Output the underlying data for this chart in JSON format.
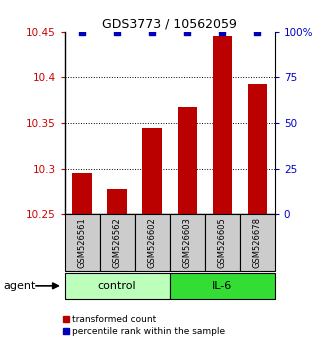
{
  "title": "GDS3773 / 10562059",
  "samples": [
    "GSM526561",
    "GSM526562",
    "GSM526602",
    "GSM526603",
    "GSM526605",
    "GSM526678"
  ],
  "bar_values": [
    10.295,
    10.278,
    10.345,
    10.368,
    10.445,
    10.393
  ],
  "percentile_values": [
    100,
    100,
    100,
    100,
    100,
    100
  ],
  "ylim_left": [
    10.25,
    10.45
  ],
  "ylim_right": [
    0,
    100
  ],
  "yticks_left": [
    10.25,
    10.3,
    10.35,
    10.4,
    10.45
  ],
  "ytick_labels_left": [
    "10.25",
    "10.3",
    "10.35",
    "10.4",
    "10.45"
  ],
  "yticks_right": [
    0,
    25,
    50,
    75,
    100
  ],
  "ytick_labels_right": [
    "0",
    "25",
    "50",
    "75",
    "100%"
  ],
  "hlines": [
    10.3,
    10.35,
    10.4
  ],
  "bar_color": "#bb0000",
  "dot_color": "#0000bb",
  "bar_width": 0.55,
  "groups": [
    {
      "label": "control",
      "indices": [
        0,
        1,
        2
      ],
      "color": "#bbffbb"
    },
    {
      "label": "IL-6",
      "indices": [
        3,
        4,
        5
      ],
      "color": "#33dd33"
    }
  ],
  "agent_label": "agent",
  "legend_bar_label": "transformed count",
  "legend_dot_label": "percentile rank within the sample",
  "bar_label_color": "#cc0000",
  "right_label_color": "#0000cc",
  "background_color": "#ffffff",
  "plot_bg_color": "#ffffff",
  "sample_box_color": "#cccccc",
  "title_fontsize": 9,
  "tick_fontsize": 7.5,
  "sample_fontsize": 6,
  "group_fontsize": 8,
  "legend_fontsize": 6.5
}
